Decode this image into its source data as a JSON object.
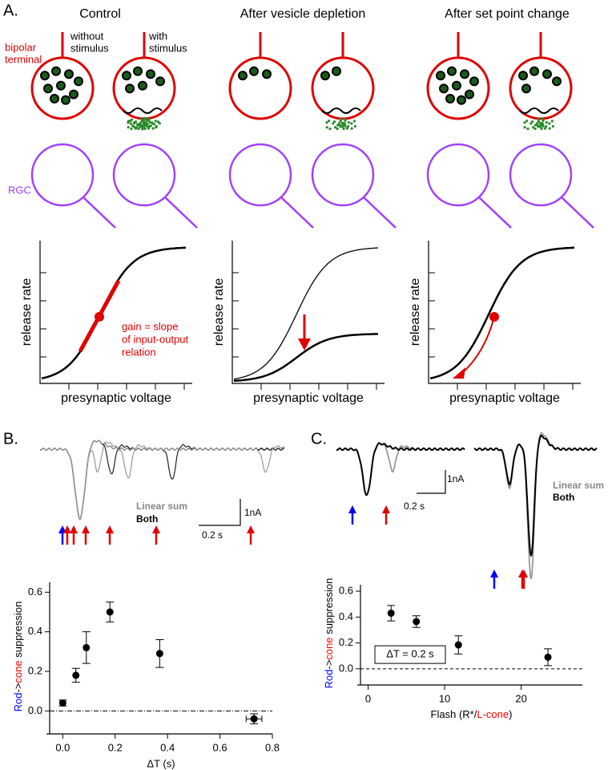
{
  "panel_a": {
    "label": "A.",
    "titles": [
      "Control",
      "After vesicle depletion",
      "After set point change"
    ],
    "bipolar_label": [
      "bipolar",
      "terminal"
    ],
    "without_label": [
      "without",
      "stimulus"
    ],
    "with_label": [
      "with",
      "stimulus"
    ],
    "rgc_label": "RGC",
    "ylabel": "release rate",
    "xlabel": "presynaptic voltage",
    "gain_note": [
      "gain = slope",
      "of input-output",
      "relation"
    ]
  },
  "panel_b": {
    "label": "B.",
    "linear_sum": "Linear sum",
    "both": "Both",
    "scale_current": "1nA",
    "scale_time": "0.2 s"
  },
  "panel_c": {
    "label": "C.",
    "linear_sum": "Linear sum",
    "both": "Both",
    "scale_current": "1nA",
    "scale_time": "0.2 s"
  },
  "chart_data": [
    {
      "type": "scatter",
      "xlabel": "ΔT (s)",
      "ylabel": [
        "Rod",
        "->",
        "cone",
        " suppression"
      ],
      "ylabel_colors": [
        "#0000ff",
        "#000000",
        "#ff0000",
        "#000000"
      ],
      "x": [
        0,
        0.05,
        0.09,
        0.18,
        0.37,
        0.73
      ],
      "values": [
        0.04,
        0.18,
        0.32,
        0.5,
        0.29,
        -0.04
      ],
      "errors": [
        0.015,
        0.035,
        0.08,
        0.05,
        0.07,
        0.025
      ],
      "xerrors": [
        null,
        null,
        null,
        null,
        null,
        0.03
      ],
      "color": "#000000",
      "xlim": [
        -0.05,
        0.8
      ],
      "ylim": [
        -0.1,
        0.65
      ],
      "xticks": [
        {
          "value": 0,
          "label": "0.0"
        },
        0.2,
        0.4,
        0.6,
        0.8
      ],
      "yticks": [
        {
          "value": 0,
          "label": "0.0"
        },
        0.2,
        0.4,
        0.6
      ],
      "zero_line": "dashdot"
    },
    {
      "type": "scatter",
      "xlabel": [
        "Flash (R*/",
        "L-cone",
        ")"
      ],
      "xlabel_colors": [
        "#000000",
        "#ff0000",
        "#000000"
      ],
      "ylabel": [
        "Rod",
        "->",
        "cone",
        " suppression"
      ],
      "ylabel_colors": [
        "#0000ff",
        "#000000",
        "#ff0000",
        "#000000"
      ],
      "annotation": "ΔT = 0.2 s",
      "x": [
        3,
        6.3,
        11.8,
        23.5
      ],
      "values": [
        0.43,
        0.365,
        0.185,
        0.09
      ],
      "errors": [
        0.06,
        0.045,
        0.07,
        0.065
      ],
      "color": "#000000",
      "xlim": [
        -1,
        28
      ],
      "ylim": [
        -0.1,
        0.65
      ],
      "xticks": [
        0,
        10,
        20
      ],
      "yticks": [
        {
          "value": 0,
          "label": "0.0"
        },
        0.2,
        0.4,
        0.6
      ],
      "zero_line": "dashed"
    }
  ]
}
